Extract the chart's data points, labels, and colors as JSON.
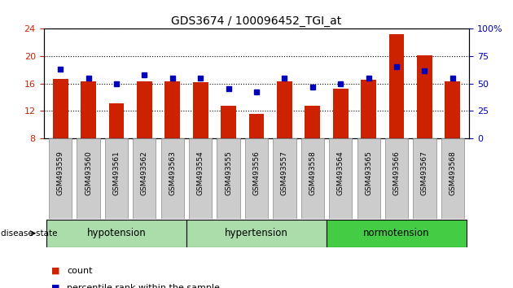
{
  "title": "GDS3674 / 100096452_TGI_at",
  "samples": [
    "GSM493559",
    "GSM493560",
    "GSM493561",
    "GSM493562",
    "GSM493563",
    "GSM493554",
    "GSM493555",
    "GSM493556",
    "GSM493557",
    "GSM493558",
    "GSM493564",
    "GSM493565",
    "GSM493566",
    "GSM493567",
    "GSM493568"
  ],
  "counts": [
    16.7,
    16.3,
    13.1,
    16.3,
    16.3,
    16.2,
    12.7,
    11.6,
    16.3,
    12.7,
    15.3,
    16.5,
    23.2,
    20.1,
    16.3
  ],
  "percentile_ranks": [
    63,
    55,
    50,
    58,
    55,
    55,
    45,
    42,
    55,
    47,
    50,
    55,
    65,
    62,
    55
  ],
  "groups": [
    {
      "label": "hypotension",
      "start": 0,
      "end": 5
    },
    {
      "label": "hypertension",
      "start": 5,
      "end": 10
    },
    {
      "label": "normotension",
      "start": 10,
      "end": 15
    }
  ],
  "group_colors": [
    "#aaddaa",
    "#aaddaa",
    "#44cc44"
  ],
  "ylim_left": [
    8,
    24
  ],
  "ylim_right": [
    0,
    100
  ],
  "yticks_left": [
    8,
    12,
    16,
    20,
    24
  ],
  "yticks_right": [
    0,
    25,
    50,
    75,
    100
  ],
  "bar_color": "#cc2200",
  "dot_color": "#0000bb",
  "bar_width": 0.55,
  "legend_count_label": "count",
  "legend_pct_label": "percentile rank within the sample",
  "disease_state_label": "disease state",
  "bg_color": "#ffffff",
  "tick_label_color_left": "#cc2200",
  "tick_label_color_right": "#0000bb",
  "title_fontsize": 10,
  "group_label_fontsize": 8.5
}
